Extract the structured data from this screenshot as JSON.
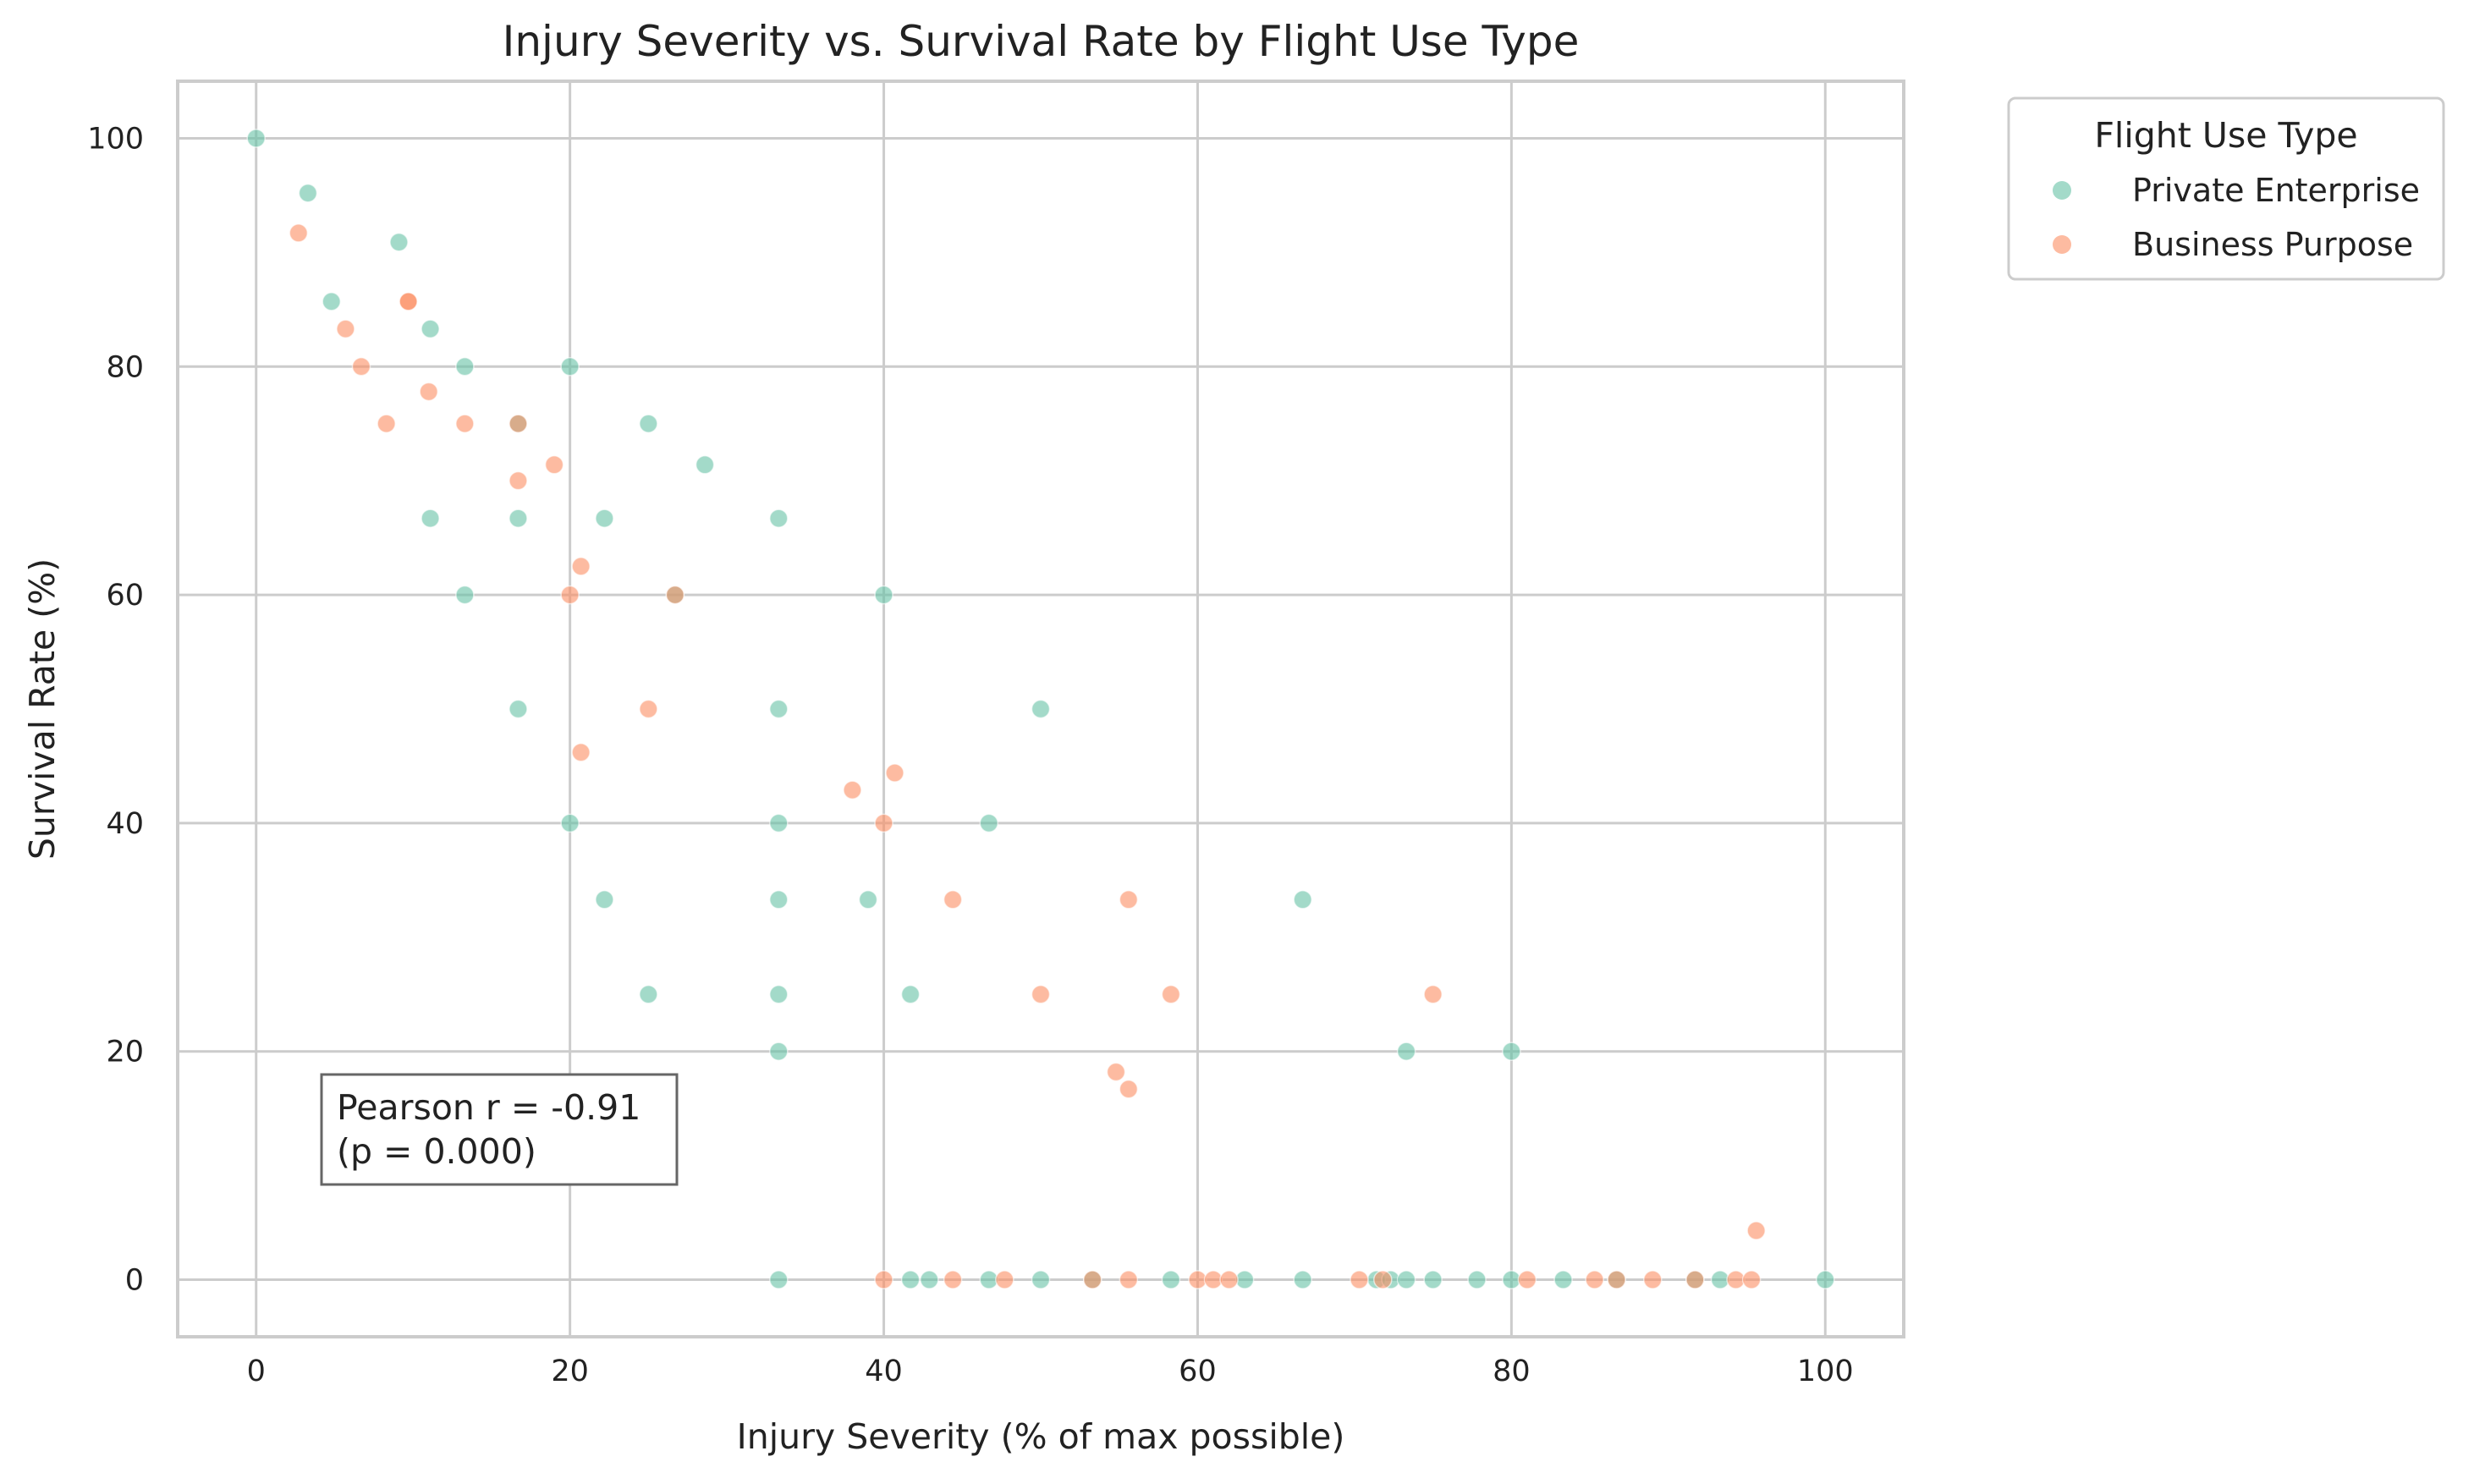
{
  "chart_data": {
    "type": "scatter",
    "title": "Injury Severity vs. Survival Rate by Flight Use Type",
    "xlabel": "Injury Severity (% of max possible)",
    "ylabel": "Survival Rate (%)",
    "xlim": [
      -5,
      105
    ],
    "ylim": [
      -5,
      105
    ],
    "xticks": [
      "0",
      "20",
      "40",
      "60",
      "80",
      "100"
    ],
    "yticks": [
      "0",
      "20",
      "40",
      "60",
      "80",
      "100"
    ],
    "grid": true,
    "legend": {
      "title": "Flight Use Type",
      "placement": "outside upper-right"
    },
    "annotation": [
      "Pearson r = -0.91",
      "(p = 0.000)"
    ],
    "series": [
      {
        "name": "Private Enterprise",
        "color": "#66c2a5",
        "points": [
          [
            0,
            100
          ],
          [
            3.3,
            95.2
          ],
          [
            4.8,
            85.7
          ],
          [
            9.1,
            90.9
          ],
          [
            11.1,
            83.3
          ],
          [
            11.1,
            66.7
          ],
          [
            13.3,
            80
          ],
          [
            13.3,
            60
          ],
          [
            16.7,
            66.7
          ],
          [
            16.7,
            75
          ],
          [
            16.7,
            50
          ],
          [
            20,
            80
          ],
          [
            20,
            40
          ],
          [
            22.2,
            66.7
          ],
          [
            22.2,
            33.3
          ],
          [
            25,
            75
          ],
          [
            25,
            25
          ],
          [
            26.7,
            60
          ],
          [
            28.6,
            71.4
          ],
          [
            33.3,
            66.7
          ],
          [
            33.3,
            50
          ],
          [
            33.3,
            40
          ],
          [
            33.3,
            33.3
          ],
          [
            33.3,
            25
          ],
          [
            33.3,
            20
          ],
          [
            33.3,
            0
          ],
          [
            39,
            33.3
          ],
          [
            40,
            60
          ],
          [
            41.7,
            25
          ],
          [
            41.7,
            0
          ],
          [
            42.9,
            0
          ],
          [
            46.7,
            40
          ],
          [
            46.7,
            0
          ],
          [
            50,
            50
          ],
          [
            50,
            0
          ],
          [
            53.3,
            0
          ],
          [
            58.3,
            0
          ],
          [
            63,
            0
          ],
          [
            66.7,
            33.3
          ],
          [
            66.7,
            0
          ],
          [
            71.4,
            0
          ],
          [
            72.3,
            0
          ],
          [
            73.3,
            20
          ],
          [
            73.3,
            0
          ],
          [
            75,
            0
          ],
          [
            77.8,
            0
          ],
          [
            80,
            20
          ],
          [
            80,
            0
          ],
          [
            83.3,
            0
          ],
          [
            86.7,
            0
          ],
          [
            91.7,
            0
          ],
          [
            93.3,
            0
          ],
          [
            100,
            0
          ]
        ]
      },
      {
        "name": "Business Purpose",
        "color": "#fc8d62",
        "points": [
          [
            2.7,
            91.7
          ],
          [
            5.7,
            83.3
          ],
          [
            6.7,
            80
          ],
          [
            8.3,
            75
          ],
          [
            9.7,
            85.7
          ],
          [
            9.7,
            85.7
          ],
          [
            11,
            77.8
          ],
          [
            13.3,
            75
          ],
          [
            16.7,
            70
          ],
          [
            16.7,
            75
          ],
          [
            19,
            71.4
          ],
          [
            20,
            60
          ],
          [
            20.7,
            62.5
          ],
          [
            20.7,
            46.2
          ],
          [
            25,
            50
          ],
          [
            26.7,
            60
          ],
          [
            38,
            42.9
          ],
          [
            40,
            40
          ],
          [
            40.7,
            44.4
          ],
          [
            40,
            0
          ],
          [
            44.4,
            33.3
          ],
          [
            44.4,
            0
          ],
          [
            47.7,
            0
          ],
          [
            50,
            25
          ],
          [
            53.3,
            0
          ],
          [
            54.8,
            18.2
          ],
          [
            55.6,
            33.3
          ],
          [
            55.6,
            16.7
          ],
          [
            55.6,
            0
          ],
          [
            58.3,
            25
          ],
          [
            60,
            0
          ],
          [
            61,
            0
          ],
          [
            62,
            0
          ],
          [
            70.3,
            0
          ],
          [
            71.8,
            0
          ],
          [
            75,
            25
          ],
          [
            81,
            0
          ],
          [
            85.3,
            0
          ],
          [
            86.7,
            0
          ],
          [
            89,
            0
          ],
          [
            91.7,
            0
          ],
          [
            94.3,
            0
          ],
          [
            95.3,
            0
          ],
          [
            95.6,
            4.3
          ]
        ]
      }
    ]
  }
}
